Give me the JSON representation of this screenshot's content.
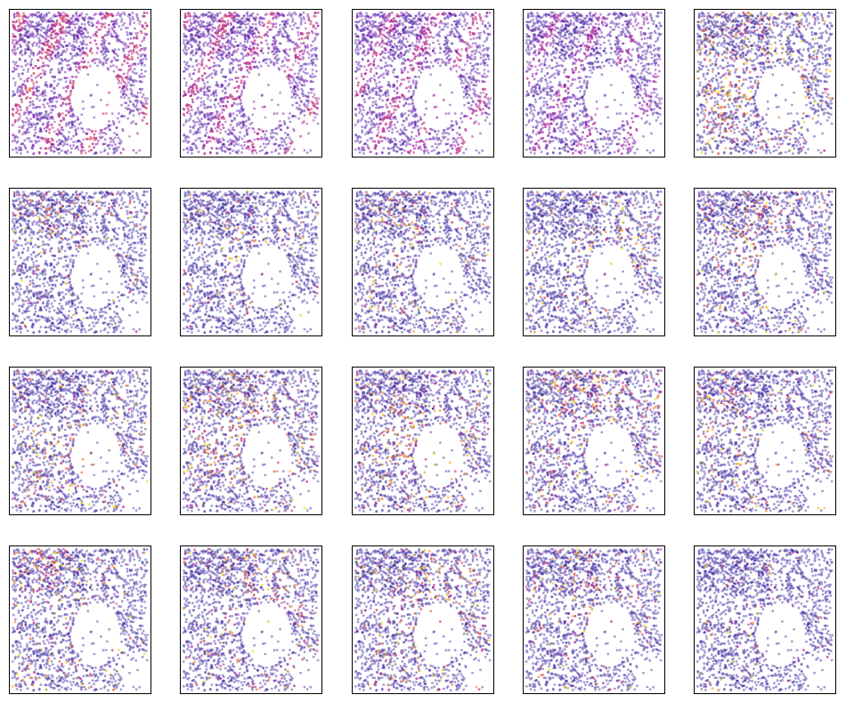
{
  "figure": {
    "rows": 4,
    "cols": 5,
    "panel_count": 20
  },
  "colors": {
    "background": "#ffffff",
    "frame": "#000000",
    "colormap": "plasma",
    "low": "#2c2c9a",
    "mid": "#c33a8f",
    "high": "#f4e620"
  },
  "chart_data": {
    "type": "scatter",
    "description_free": true,
    "xticks": [],
    "yticks": [],
    "grid": false,
    "legend": "none",
    "colormap": "plasma",
    "value_range": [
      0,
      1
    ],
    "panels": [
      {
        "row": 1,
        "col": 1,
        "overall_intensity": 0.62
      },
      {
        "row": 1,
        "col": 2,
        "overall_intensity": 0.58
      },
      {
        "row": 1,
        "col": 3,
        "overall_intensity": 0.55
      },
      {
        "row": 1,
        "col": 4,
        "overall_intensity": 0.46
      },
      {
        "row": 1,
        "col": 5,
        "overall_intensity": 0.3
      },
      {
        "row": 2,
        "col": 1,
        "overall_intensity": 0.12
      },
      {
        "row": 2,
        "col": 2,
        "overall_intensity": 0.12
      },
      {
        "row": 2,
        "col": 3,
        "overall_intensity": 0.15
      },
      {
        "row": 2,
        "col": 4,
        "overall_intensity": 0.14
      },
      {
        "row": 2,
        "col": 5,
        "overall_intensity": 0.18
      },
      {
        "row": 3,
        "col": 1,
        "overall_intensity": 0.18
      },
      {
        "row": 3,
        "col": 2,
        "overall_intensity": 0.28
      },
      {
        "row": 3,
        "col": 3,
        "overall_intensity": 0.26
      },
      {
        "row": 3,
        "col": 4,
        "overall_intensity": 0.3
      },
      {
        "row": 3,
        "col": 5,
        "overall_intensity": 0.18
      },
      {
        "row": 4,
        "col": 1,
        "overall_intensity": 0.18
      },
      {
        "row": 4,
        "col": 2,
        "overall_intensity": 0.2
      },
      {
        "row": 4,
        "col": 3,
        "overall_intensity": 0.22
      },
      {
        "row": 4,
        "col": 4,
        "overall_intensity": 0.16
      },
      {
        "row": 4,
        "col": 5,
        "overall_intensity": 0.05
      }
    ]
  }
}
